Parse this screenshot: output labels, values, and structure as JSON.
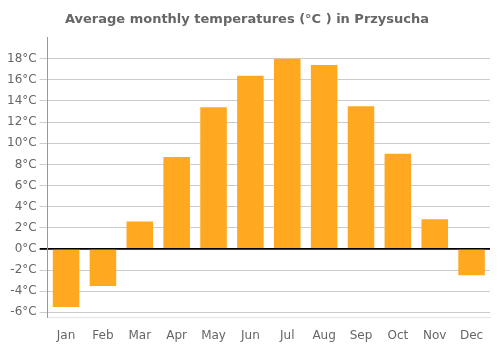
{
  "chart_data": {
    "type": "bar",
    "title": "Average monthly temperatures (°C ) in Przysucha",
    "categories": [
      "Jan",
      "Feb",
      "Mar",
      "Apr",
      "May",
      "Jun",
      "Jul",
      "Aug",
      "Sep",
      "Oct",
      "Nov",
      "Dec"
    ],
    "values": [
      -5.5,
      -3.5,
      2.6,
      8.7,
      13.4,
      16.4,
      18.0,
      17.4,
      13.5,
      9.0,
      2.8,
      -2.5
    ],
    "color": "#FFA820",
    "ylim": [
      -6.5,
      20
    ],
    "yticks": [
      {
        "value": -6,
        "label": "-6°C"
      },
      {
        "value": -4,
        "label": "-4°C"
      },
      {
        "value": -2,
        "label": "-2°C"
      },
      {
        "value": 0,
        "label": "0°C"
      },
      {
        "value": 2,
        "label": "2°C"
      },
      {
        "value": 4,
        "label": "4°C"
      },
      {
        "value": 6,
        "label": "6°C"
      },
      {
        "value": 8,
        "label": "8°C"
      },
      {
        "value": 10,
        "label": "10°C"
      },
      {
        "value": 12,
        "label": "12°C"
      },
      {
        "value": 14,
        "label": "14°C"
      },
      {
        "value": 16,
        "label": "16°C"
      },
      {
        "value": 18,
        "label": "18°C"
      }
    ],
    "grid": true
  }
}
